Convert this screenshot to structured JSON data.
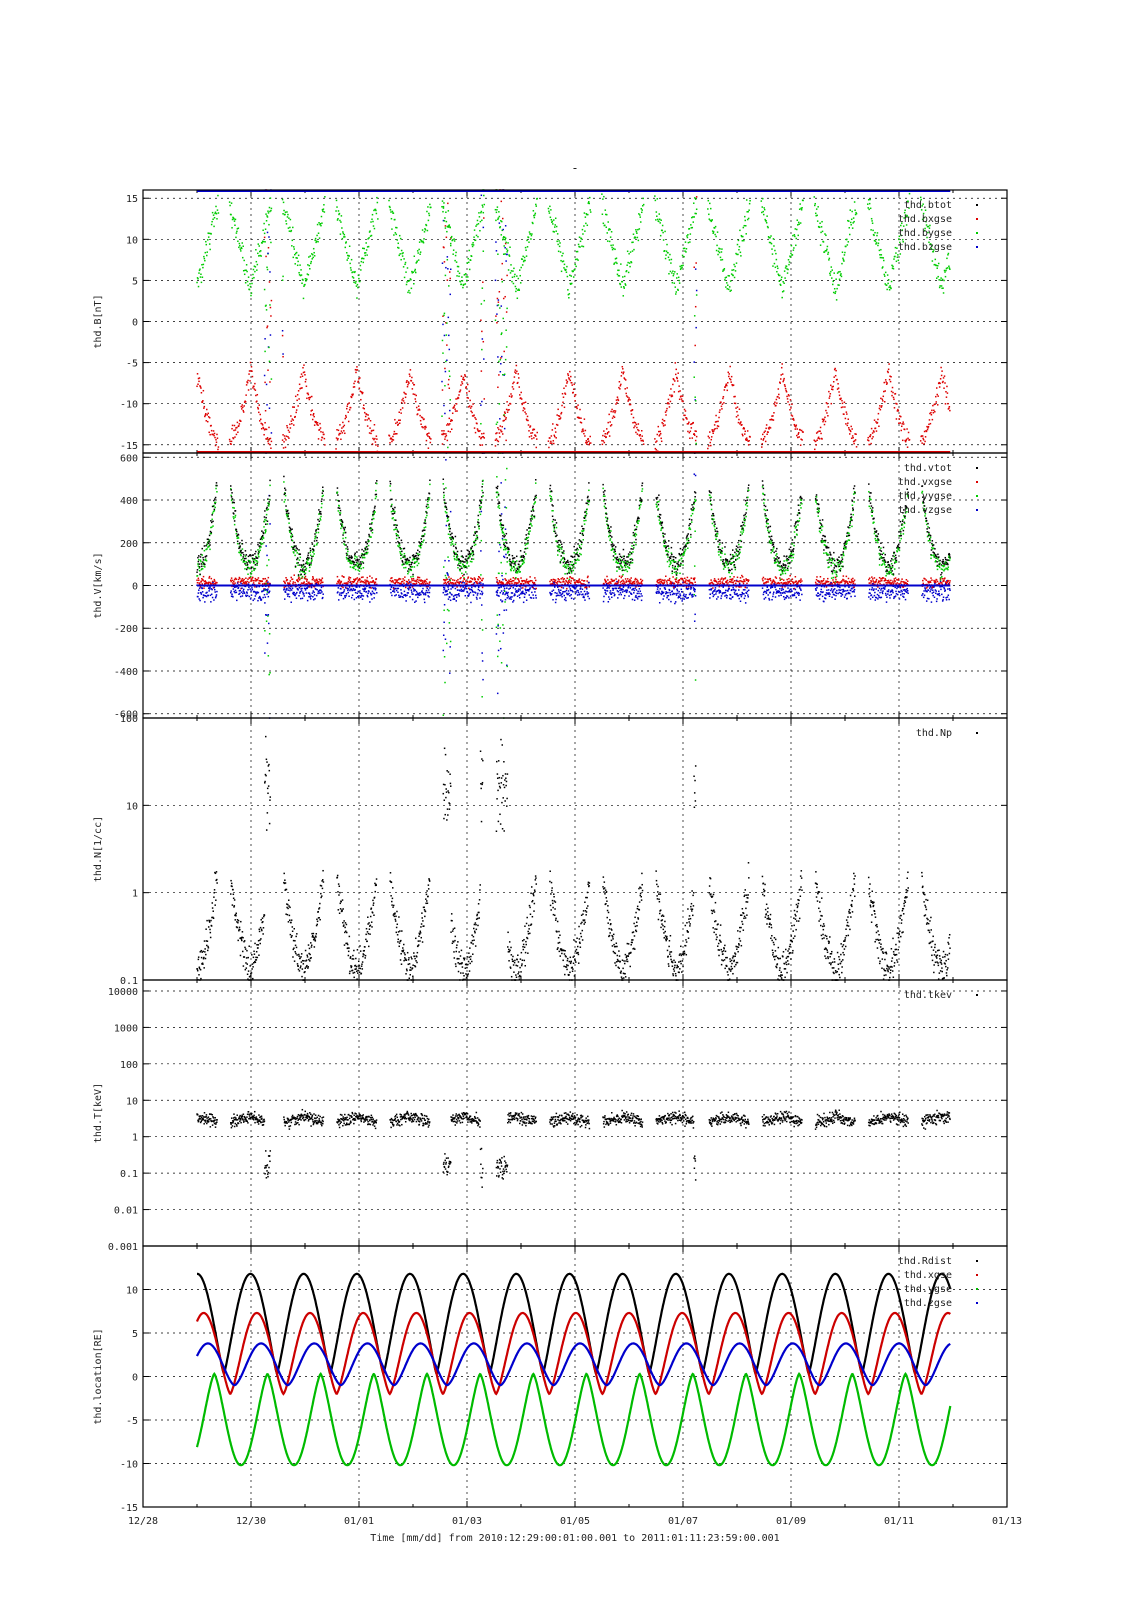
{
  "figure": {
    "top_mark": "-",
    "xlabel": "Time [mm/dd]  from 2010:12:29:00:01:00.001  to  2011:01:11:23:59:00.001",
    "x_ticks": [
      "12/28",
      "12/30",
      "01/01",
      "01/03",
      "01/05",
      "01/07",
      "01/09",
      "01/11",
      "01/13"
    ]
  },
  "chart_data": [
    {
      "type": "scatter",
      "ylabel": "thd.B[nT]",
      "yscale": "linear",
      "ylim": [
        -16,
        16
      ],
      "y_ticks": [
        "-15",
        "-10",
        "-5",
        "0",
        "5",
        "10",
        "15"
      ],
      "xlim_days": [
        0,
        16
      ],
      "grid": true,
      "legend_position": "top-right",
      "legend": [
        "thd.btot",
        "thd.bxgse",
        "thd.bygse",
        "thd.bzgse"
      ],
      "series": [
        {
          "name": "thd.btot",
          "color": "#000000",
          "note_values_clipped_above_16": true
        },
        {
          "name": "thd.bxgse",
          "color": "#dd0000",
          "orbit_minimum_range": [
            -15,
            -5
          ]
        },
        {
          "name": "thd.bygse",
          "color": "#00cc00",
          "orbit_maximum_range": [
            5,
            15
          ]
        },
        {
          "name": "thd.bzgse",
          "color": "#0000cc",
          "clipped_at_top": 16
        }
      ]
    },
    {
      "type": "scatter",
      "ylabel": "thd.V[km/s]",
      "yscale": "linear",
      "ylim": [
        -620,
        620
      ],
      "y_ticks": [
        "-600",
        "-400",
        "-200",
        "0",
        "200",
        "400",
        "600"
      ],
      "grid": true,
      "legend_position": "top-right",
      "legend": [
        "thd.vtot",
        "thd.vxgse",
        "thd.vygse",
        "thd.vzgse"
      ],
      "series": [
        {
          "name": "thd.vtot",
          "color": "#000000",
          "typical": [
            50,
            500
          ]
        },
        {
          "name": "thd.vxgse",
          "color": "#dd0000",
          "typical": [
            -20,
            50
          ]
        },
        {
          "name": "thd.vygse",
          "color": "#00cc00",
          "typical": [
            0,
            500
          ]
        },
        {
          "name": "thd.vzgse",
          "color": "#0000cc",
          "typical": [
            -100,
            20
          ]
        }
      ]
    },
    {
      "type": "scatter",
      "ylabel": "thd.N[1/cc]",
      "yscale": "log",
      "ylim": [
        0.1,
        100
      ],
      "y_ticks": [
        "0.1",
        "1",
        "10",
        "100"
      ],
      "grid": true,
      "legend_position": "top-right",
      "legend": [
        "thd.Np"
      ],
      "series": [
        {
          "name": "thd.Np",
          "color": "#000000",
          "bursts_days": [
            2.3,
            5.3,
            6.3,
            10.3
          ],
          "burst_max": 60,
          "baseline": [
            0.15,
            1
          ]
        }
      ]
    },
    {
      "type": "scatter",
      "ylabel": "thd.T[keV]",
      "yscale": "log",
      "ylim": [
        0.001,
        20000
      ],
      "y_ticks": [
        "0.001",
        "0.01",
        "0.1",
        "1",
        "10",
        "100",
        "1000",
        "10000"
      ],
      "grid": true,
      "legend_position": "top-right",
      "legend": [
        "thd.tkev"
      ],
      "series": [
        {
          "name": "thd.tkev",
          "color": "#000000",
          "typical": [
            1,
            6
          ],
          "dips_days": [
            2.6,
            5.6,
            6.6,
            10.3
          ],
          "dip_min": 0.1
        }
      ]
    },
    {
      "type": "line",
      "ylabel": "thd.location[RE]",
      "yscale": "linear",
      "ylim": [
        -15,
        15
      ],
      "y_ticks": [
        "-15",
        "-10",
        "-5",
        "0",
        "5",
        "10"
      ],
      "grid": true,
      "legend_position": "top-right",
      "legend": [
        "thd.Rdist",
        "thd.xgse",
        "thd.ygse",
        "thd.zgse"
      ],
      "orbit_period_days": 0.9846,
      "apogee_first_day": 1.99,
      "series": [
        {
          "name": "thd.Rdist",
          "color": "#000000",
          "min": 0.3,
          "max": 11.8
        },
        {
          "name": "thd.xgse",
          "color": "#cc0000",
          "min": -2,
          "max": 7.3
        },
        {
          "name": "thd.ygse",
          "color": "#00bb00",
          "min": -10.2,
          "max": 0.3
        },
        {
          "name": "thd.zgse",
          "color": "#0000cc",
          "min": -1,
          "max": 3.8
        }
      ]
    }
  ]
}
